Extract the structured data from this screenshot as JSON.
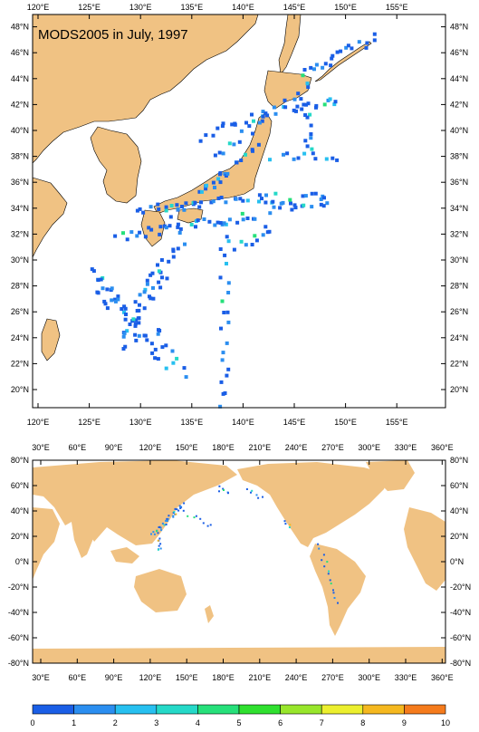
{
  "top_map": {
    "title": "MODS2005 in July, 1997",
    "x_tick_labels": [
      "120°E",
      "125°E",
      "130°E",
      "135°E",
      "140°E",
      "145°E",
      "150°E",
      "155°E"
    ],
    "y_tick_labels": [
      "20°N",
      "22°N",
      "24°N",
      "26°N",
      "28°N",
      "30°N",
      "32°N",
      "34°N",
      "36°N",
      "38°N",
      "40°N",
      "42°N",
      "44°N",
      "46°N",
      "48°N"
    ],
    "land_color": "#f0c283",
    "ocean_color": "#ffffff"
  },
  "bottom_map": {
    "x_tick_labels": [
      "30°E",
      "60°E",
      "90°E",
      "120°E",
      "150°E",
      "180°E",
      "210°E",
      "240°E",
      "270°E",
      "300°E",
      "330°E",
      "360°E"
    ],
    "y_tick_labels": [
      "80°N",
      "60°N",
      "40°N",
      "20°N",
      "0°N",
      "-20°N",
      "-40°N",
      "-60°N",
      "-80°N"
    ]
  },
  "colorbar": {
    "tick_labels": [
      "0",
      "1",
      "2",
      "3",
      "4",
      "5",
      "6",
      "7",
      "8",
      "9",
      "10"
    ],
    "colors": [
      "#1a5ee6",
      "#2b8ef0",
      "#27c0f0",
      "#25d9c8",
      "#26e07a",
      "#2fe02f",
      "#98e62b",
      "#ecef2e",
      "#f5b81f",
      "#f57b1c"
    ]
  }
}
